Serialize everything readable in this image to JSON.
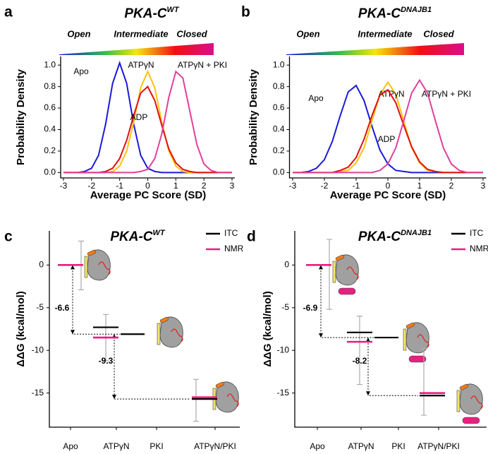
{
  "chart_data": [
    {
      "type": "line",
      "label": "a",
      "title": "PKA-C",
      "title_sup": "WT",
      "scale_labels": [
        "Open",
        "Intermediate",
        "Closed"
      ],
      "xlabel": "Average PC Score (SD)",
      "ylabel": "Probability Density",
      "x": [
        -3,
        -2.75,
        -2.5,
        -2.25,
        -2,
        -1.75,
        -1.5,
        -1.25,
        -1,
        -0.75,
        -0.5,
        -0.25,
        0,
        0.25,
        0.5,
        0.75,
        1,
        1.25,
        1.5,
        1.75,
        2,
        2.25,
        2.5,
        2.75,
        3
      ],
      "series": [
        {
          "name": "Apo",
          "color": "#1a1adb",
          "values": [
            0,
            0,
            0,
            0.01,
            0.04,
            0.16,
            0.45,
            0.83,
            1.02,
            0.83,
            0.45,
            0.16,
            0.04,
            0.01,
            0,
            0,
            0,
            0,
            0,
            0,
            0,
            0,
            0,
            0,
            0
          ]
        },
        {
          "name": "ATPγN",
          "color": "#ffc20e",
          "values": [
            0,
            0,
            0,
            0,
            0,
            0,
            0,
            0.01,
            0.06,
            0.2,
            0.47,
            0.79,
            0.94,
            0.79,
            0.47,
            0.2,
            0.06,
            0.01,
            0,
            0,
            0,
            0,
            0,
            0,
            0
          ]
        },
        {
          "name": "ADP",
          "color": "#e01010",
          "values": [
            0,
            0,
            0,
            0,
            0,
            0,
            0.01,
            0.04,
            0.13,
            0.3,
            0.53,
            0.74,
            0.8,
            0.67,
            0.44,
            0.22,
            0.09,
            0.03,
            0.01,
            0,
            0,
            0,
            0,
            0,
            0
          ]
        },
        {
          "name": "ATPγN + PKI",
          "color": "#e0409a",
          "values": [
            0,
            0,
            0,
            0,
            0,
            0,
            0,
            0,
            0,
            0,
            0,
            0.01,
            0.03,
            0.13,
            0.36,
            0.7,
            0.94,
            0.88,
            0.57,
            0.26,
            0.08,
            0.02,
            0,
            0,
            0
          ]
        }
      ],
      "xlim": [
        -3.1,
        3.1
      ],
      "xticks": [
        -3,
        -2,
        -1,
        0,
        1,
        2,
        3
      ],
      "ylim": [
        -0.05,
        1.08
      ],
      "yticks": [
        {
          "value": 0,
          "label": "0.0"
        },
        {
          "value": 0.2,
          "label": "0.2"
        },
        {
          "value": 0.4,
          "label": "0.4"
        },
        {
          "value": 0.6,
          "label": "0.6"
        },
        {
          "value": 0.8,
          "label": "0.8"
        },
        {
          "value": 1,
          "label": "1.0"
        }
      ]
    },
    {
      "type": "line",
      "label": "b",
      "title": "PKA-C",
      "title_sup": "DNAJB1",
      "scale_labels": [
        "Open",
        "Intermediate",
        "Closed"
      ],
      "xlabel": "Average PC Score (SD)",
      "ylabel": "Probability Density",
      "x": [
        -3,
        -2.75,
        -2.5,
        -2.25,
        -2,
        -1.75,
        -1.5,
        -1.25,
        -1,
        -0.75,
        -0.5,
        -0.25,
        0,
        0.25,
        0.5,
        0.75,
        1,
        1.25,
        1.5,
        1.75,
        2,
        2.25,
        2.5,
        2.75,
        3
      ],
      "series": [
        {
          "name": "Apo",
          "color": "#1a1adb",
          "values": [
            0,
            0,
            0.01,
            0.04,
            0.12,
            0.29,
            0.53,
            0.75,
            0.81,
            0.67,
            0.43,
            0.21,
            0.08,
            0.02,
            0.01,
            0,
            0,
            0,
            0,
            0,
            0,
            0,
            0,
            0,
            0
          ]
        },
        {
          "name": "ATPγN",
          "color": "#ffc20e",
          "values": [
            0,
            0,
            0,
            0,
            0,
            0,
            0.01,
            0.02,
            0.09,
            0.23,
            0.48,
            0.73,
            0.84,
            0.73,
            0.48,
            0.23,
            0.09,
            0.02,
            0.01,
            0,
            0,
            0,
            0,
            0,
            0
          ]
        },
        {
          "name": "ADP",
          "color": "#e01010",
          "values": [
            0,
            0,
            0,
            0,
            0,
            0,
            0.02,
            0.05,
            0.14,
            0.31,
            0.53,
            0.72,
            0.77,
            0.65,
            0.44,
            0.24,
            0.1,
            0.03,
            0.01,
            0,
            0,
            0,
            0,
            0,
            0
          ]
        },
        {
          "name": "ATPγN + PKI",
          "color": "#e0409a",
          "values": [
            0,
            0,
            0,
            0,
            0,
            0,
            0,
            0,
            0,
            0,
            0,
            0.02,
            0.08,
            0.23,
            0.48,
            0.74,
            0.86,
            0.74,
            0.48,
            0.23,
            0.08,
            0.02,
            0,
            0,
            0
          ]
        }
      ],
      "xlim": [
        -3.1,
        3.1
      ],
      "xticks": [
        -3,
        -2,
        -1,
        0,
        1,
        2,
        3
      ],
      "ylim": [
        -0.05,
        1.08
      ],
      "yticks": [
        {
          "value": 0,
          "label": "0.0"
        },
        {
          "value": 0.2,
          "label": "0.2"
        },
        {
          "value": 0.4,
          "label": "0.4"
        },
        {
          "value": 0.6,
          "label": "0.6"
        },
        {
          "value": 0.8,
          "label": "0.8"
        },
        {
          "value": 1,
          "label": "1.0"
        }
      ]
    },
    {
      "type": "energy",
      "label": "c",
      "title": "PKA-C",
      "title_sup": "WT",
      "ylabel": "ΔΔG (kcal/mol)",
      "categories": [
        "Apo",
        "ATPγN",
        "PKI",
        "ATPγN/PKI"
      ],
      "series": [
        {
          "name": "ITC",
          "color": "#000000",
          "values": [
            0,
            -7.3,
            -8.1,
            -15.7
          ]
        },
        {
          "name": "NMR",
          "color": "#ec1c7c",
          "values": [
            0,
            -8.5,
            null,
            -15.5
          ]
        }
      ],
      "error_low": [
        -2.9,
        -11.2,
        null,
        -18.3
      ],
      "error_high": [
        2.8,
        -5.8,
        null,
        -13.4
      ],
      "error_color": "#aaaaaa",
      "annotations": [
        "-6.6",
        "-9.3"
      ],
      "ylim": [
        -19,
        4
      ],
      "yticks": [
        0,
        -5,
        -10,
        -15
      ]
    },
    {
      "type": "energy",
      "label": "d",
      "title": "PKA-C",
      "title_sup": "DNAJB1",
      "ylabel": "ΔΔG (kcal/mol)",
      "categories": [
        "Apo",
        "ATPγN",
        "PKI",
        "ATPγN/PKI"
      ],
      "series": [
        {
          "name": "ITC",
          "color": "#000000",
          "values": [
            0,
            -7.9,
            -8.5,
            -15.3
          ]
        },
        {
          "name": "NMR",
          "color": "#ec1c7c",
          "values": [
            0,
            -9.0,
            null,
            -15.0
          ]
        }
      ],
      "error_low": [
        -5.2,
        -14.0,
        null,
        -17.6
      ],
      "error_high": [
        3.0,
        -6.0,
        null,
        -9.8
      ],
      "error_color": "#aaaaaa",
      "annotations": [
        "-6.9",
        "-8.2"
      ],
      "ylim": [
        -19,
        4
      ],
      "yticks": [
        0,
        -5,
        -10,
        -15
      ]
    }
  ]
}
